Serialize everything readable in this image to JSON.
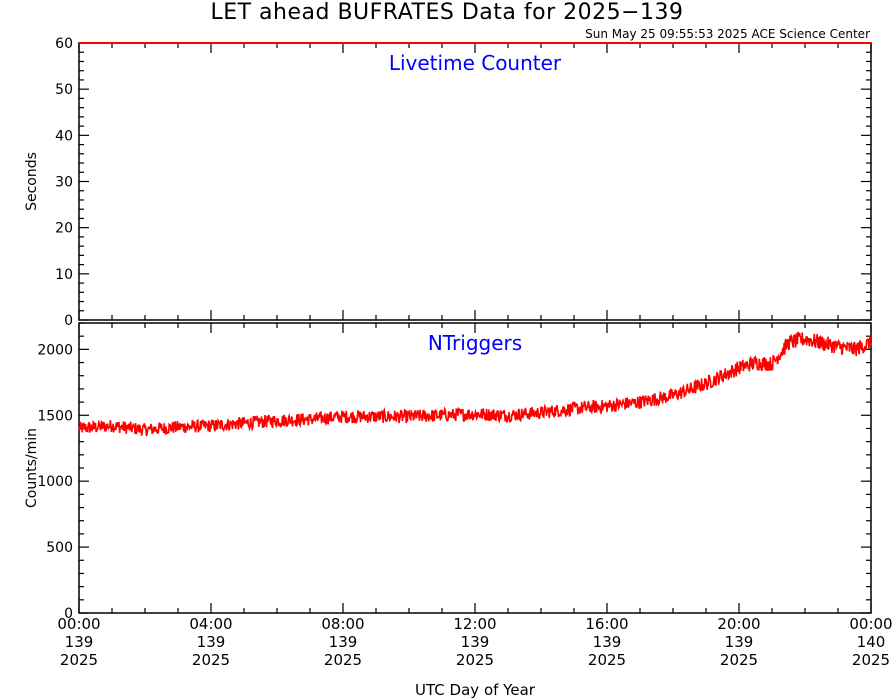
{
  "title": "LET ahead BUFRATES Data for 2025−139",
  "timestamp": "Sun May 25 09:55:53 2025 ACE Science Center",
  "xlabel": "UTC Day of Year",
  "colors": {
    "data": "#ff0000",
    "panel_label": "#0000ff",
    "axis": "#000000"
  },
  "x_ticks": [
    {
      "time": "00:00",
      "doy": "139",
      "year": "2025"
    },
    {
      "time": "04:00",
      "doy": "139",
      "year": "2025"
    },
    {
      "time": "08:00",
      "doy": "139",
      "year": "2025"
    },
    {
      "time": "12:00",
      "doy": "139",
      "year": "2025"
    },
    {
      "time": "16:00",
      "doy": "139",
      "year": "2025"
    },
    {
      "time": "20:00",
      "doy": "139",
      "year": "2025"
    },
    {
      "time": "00:00",
      "doy": "140",
      "year": "2025"
    }
  ],
  "chart_data": [
    {
      "type": "line",
      "label": "Livetime Counter",
      "ylabel": "Seconds",
      "xlim_hours": [
        0,
        24
      ],
      "ylim": [
        0,
        60
      ],
      "yticks": [
        0,
        10,
        20,
        30,
        40,
        50,
        60
      ],
      "x_hours": [
        0,
        24
      ],
      "values": [
        60,
        60
      ]
    },
    {
      "type": "line",
      "label": "NTriggers",
      "ylabel": "Counts/min",
      "xlim_hours": [
        0,
        24
      ],
      "ylim": [
        0,
        2200
      ],
      "yticks": [
        0,
        500,
        1000,
        1500,
        2000
      ],
      "x_hours": [
        0,
        1,
        2,
        3,
        4,
        5,
        6,
        7,
        8,
        9,
        10,
        11,
        12,
        13,
        14,
        15,
        16,
        17,
        18,
        19,
        20,
        20.5,
        21,
        21.5,
        22,
        22.5,
        23,
        23.5,
        24
      ],
      "values": [
        1400,
        1420,
        1390,
        1410,
        1420,
        1440,
        1460,
        1470,
        1490,
        1490,
        1490,
        1500,
        1510,
        1500,
        1520,
        1550,
        1570,
        1600,
        1650,
        1740,
        1860,
        1900,
        1890,
        2050,
        2080,
        2050,
        2020,
        2000,
        2050
      ]
    }
  ]
}
